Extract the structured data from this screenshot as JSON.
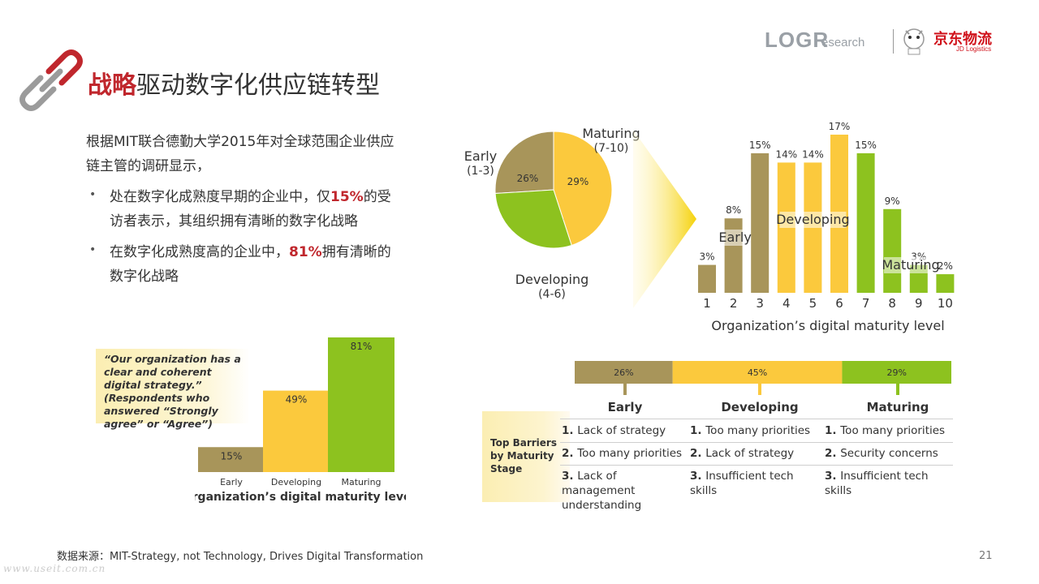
{
  "header": {
    "title_highlight": "战略",
    "title_rest": "驱动数字化供应链转型",
    "logo_log": "LOGR",
    "logo_research": "esearch",
    "jd_name": "京东物流",
    "jd_sub": "JD Logistics"
  },
  "intro": {
    "line1": "根据MIT联合德勤大学2015年对全球范围企业供应",
    "line2": "链主管的调研显示，",
    "bullet1": {
      "pre": "处在数字化成熟度早期的企业中，仅",
      "hl": "15%",
      "post": "的受",
      "line2": "访者表示，其组织拥有清晰的数字化战略"
    },
    "bullet2": {
      "pre": "在数字化成熟度高的企业中，",
      "hl": "81%",
      "post": "拥有清晰的",
      "line2": "数字化战略"
    }
  },
  "colors": {
    "early": "#a8955a",
    "developing": "#fbc93d",
    "maturing": "#8dc21f",
    "accent": "#c0272d"
  },
  "chart_data": [
    {
      "type": "pie",
      "slices": [
        {
          "label": "Early",
          "sublabel": "(1-3)",
          "value": 26,
          "text": "26%"
        },
        {
          "label": "Developing",
          "sublabel": "(4-6)",
          "value": 45,
          "text": "45%"
        },
        {
          "label": "Maturing",
          "sublabel": "(7-10)",
          "value": 29,
          "text": "29%"
        }
      ]
    },
    {
      "type": "bar",
      "xlabel": "Organization’s digital maturity level",
      "categories": [
        "1",
        "2",
        "3",
        "4",
        "5",
        "6",
        "7",
        "8",
        "9",
        "10"
      ],
      "values": [
        3,
        8,
        15,
        14,
        14,
        17,
        15,
        9,
        3,
        2
      ],
      "labels": [
        "3%",
        "8%",
        "15%",
        "14%",
        "14%",
        "17%",
        "15%",
        "9%",
        "3%",
        "2%"
      ],
      "groups": [
        "early",
        "early",
        "early",
        "developing",
        "developing",
        "developing",
        "maturing",
        "maturing",
        "maturing",
        "maturing"
      ],
      "group_labels": {
        "early": "Early",
        "developing": "Developing",
        "maturing": "Maturing"
      },
      "ylim": [
        0,
        17
      ]
    },
    {
      "type": "bar",
      "xlabel": "Organization’s digital maturity level",
      "quote": "“Our organization has a clear and coherent digital strategy.” (Respondents who answered “Strongly agree” or “Agree”)",
      "categories": [
        "Early",
        "Developing",
        "Maturing"
      ],
      "values": [
        15,
        49,
        81
      ],
      "labels": [
        "15%",
        "49%",
        "81%"
      ],
      "ylim": [
        0,
        81
      ]
    },
    {
      "type": "table",
      "distribution": [
        {
          "stage": "Early",
          "share": 26,
          "text": "26%"
        },
        {
          "stage": "Developing",
          "share": 45,
          "text": "45%"
        },
        {
          "stage": "Maturing",
          "share": 29,
          "text": "29%"
        }
      ],
      "row_header": "Top Barriers by Maturity Stage",
      "columns": [
        {
          "stage": "Early",
          "items": [
            "Lack of strategy",
            "Too many priorities",
            "Lack of management understanding"
          ]
        },
        {
          "stage": "Developing",
          "items": [
            "Too many priorities",
            "Lack of strategy",
            "Insufficient tech skills"
          ]
        },
        {
          "stage": "Maturing",
          "items": [
            "Too many priorities",
            "Security concerns",
            "Insufficient tech skills"
          ]
        }
      ]
    }
  ],
  "footer": {
    "source": "数据来源：MIT-Strategy, not Technology, Drives Digital Transformation",
    "page": "21",
    "watermark": "www.useit.com.cn"
  }
}
